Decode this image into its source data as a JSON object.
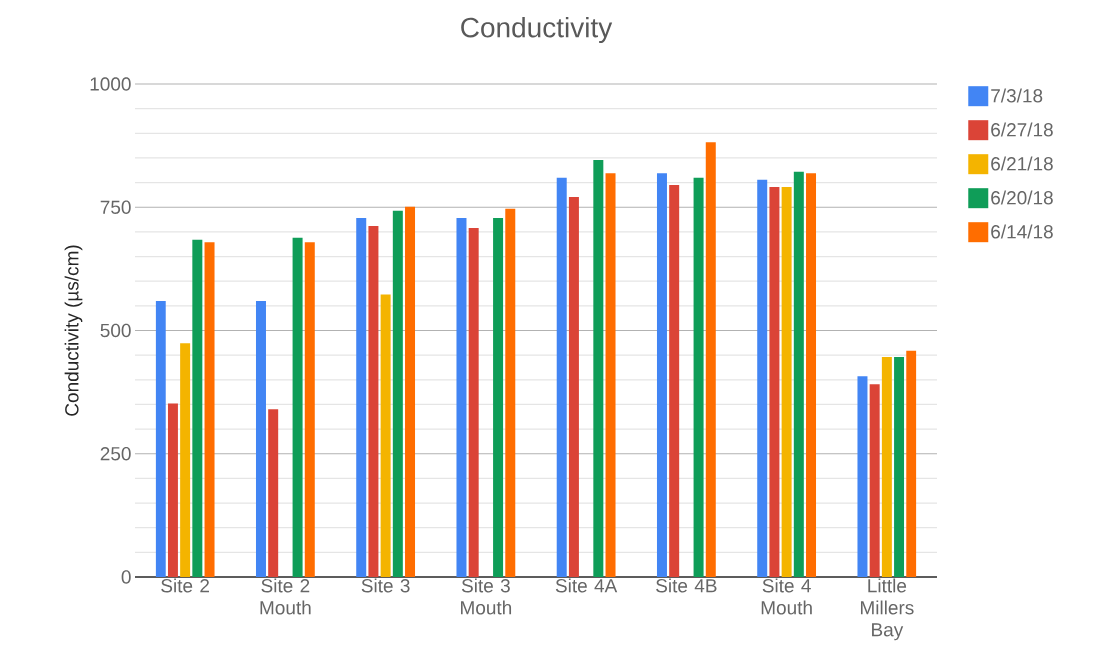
{
  "chart_data": {
    "type": "bar",
    "title": "Conductivity",
    "ylabel": "Conductivity (µs/cm)",
    "categories": [
      "Site 2",
      "Site 2 Mouth",
      "Site 3",
      "Site 3 Mouth",
      "Site 4A",
      "Site 4B",
      "Site 4 Mouth",
      "Little Millers Bay"
    ],
    "series": [
      {
        "name": "7/3/18",
        "color": "#4285f4",
        "values": [
          560,
          560,
          728,
          728,
          810,
          819,
          806,
          407
        ]
      },
      {
        "name": "6/27/18",
        "color": "#db4437",
        "values": [
          352,
          340,
          712,
          708,
          771,
          795,
          791,
          391
        ]
      },
      {
        "name": "6/21/18",
        "color": "#f4b400",
        "values": [
          474,
          null,
          573,
          null,
          null,
          null,
          791,
          446
        ]
      },
      {
        "name": "6/20/18",
        "color": "#0f9d58",
        "values": [
          684,
          688,
          743,
          728,
          846,
          810,
          822,
          446
        ]
      },
      {
        "name": "6/14/18",
        "color": "#ff6d00",
        "values": [
          679,
          679,
          751,
          747,
          819,
          882,
          819,
          459
        ]
      }
    ],
    "ylim": [
      0,
      1000
    ],
    "yticks": [
      0,
      250,
      500,
      750,
      1000
    ],
    "grid": "y",
    "legend": "right"
  }
}
